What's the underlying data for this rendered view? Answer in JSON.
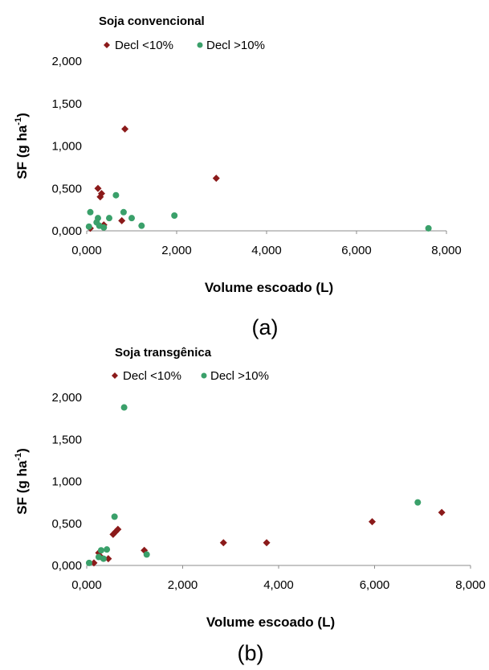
{
  "chart_data": [
    {
      "type": "scatter",
      "title": "Soja convencional",
      "xlabel": "Volume escoado (L)",
      "ylabel": "SF (g ha",
      "ylabel_superscript": "-1",
      "ylabel_suffix": ")",
      "panel_label": "(a)",
      "x_ticks": [
        "0,000",
        "2,000",
        "4,000",
        "6,000",
        "8,000"
      ],
      "y_ticks": [
        "0,000",
        "0,500",
        "1,000",
        "1,500",
        "2,000"
      ],
      "xlim": [
        0,
        8
      ],
      "ylim": [
        0,
        2
      ],
      "legend_position": "top",
      "series": [
        {
          "name": "Decl <10%",
          "color": "#8b1a1a",
          "marker": "diamond",
          "points": [
            [
              0.08,
              0.03
            ],
            [
              0.25,
              0.5
            ],
            [
              0.3,
              0.4
            ],
            [
              0.33,
              0.44
            ],
            [
              0.38,
              0.07
            ],
            [
              0.78,
              0.12
            ],
            [
              0.85,
              1.2
            ],
            [
              2.88,
              0.62
            ]
          ]
        },
        {
          "name": "Decl >10%",
          "color": "#3aa06a",
          "marker": "circle",
          "points": [
            [
              0.05,
              0.05
            ],
            [
              0.08,
              0.22
            ],
            [
              0.22,
              0.1
            ],
            [
              0.25,
              0.15
            ],
            [
              0.28,
              0.06
            ],
            [
              0.38,
              0.04
            ],
            [
              0.5,
              0.15
            ],
            [
              0.65,
              0.42
            ],
            [
              0.82,
              0.22
            ],
            [
              1.0,
              0.15
            ],
            [
              1.22,
              0.06
            ],
            [
              1.95,
              0.18
            ],
            [
              7.6,
              0.03
            ]
          ]
        }
      ]
    },
    {
      "type": "scatter",
      "title": "Soja transgênica",
      "xlabel": "Volume escoado (L)",
      "ylabel": "SF (g ha",
      "ylabel_superscript": "-1",
      "ylabel_suffix": ")",
      "panel_label": "(b)",
      "x_ticks": [
        "0,000",
        "2,000",
        "4,000",
        "6,000",
        "8,000"
      ],
      "y_ticks": [
        "0,000",
        "0,500",
        "1,000",
        "1,500",
        "2,000"
      ],
      "xlim": [
        0,
        8
      ],
      "ylim": [
        0,
        2
      ],
      "legend_position": "top",
      "series": [
        {
          "name": "Decl <10%",
          "color": "#8b1a1a",
          "marker": "diamond",
          "points": [
            [
              0.15,
              0.03
            ],
            [
              0.25,
              0.15
            ],
            [
              0.3,
              0.1
            ],
            [
              0.45,
              0.08
            ],
            [
              0.55,
              0.37
            ],
            [
              0.6,
              0.4
            ],
            [
              0.65,
              0.43
            ],
            [
              1.2,
              0.18
            ],
            [
              2.85,
              0.27
            ],
            [
              3.75,
              0.27
            ],
            [
              5.95,
              0.52
            ],
            [
              7.4,
              0.63
            ]
          ]
        },
        {
          "name": "Decl >10%",
          "color": "#3aa06a",
          "marker": "circle",
          "points": [
            [
              0.05,
              0.03
            ],
            [
              0.25,
              0.1
            ],
            [
              0.3,
              0.18
            ],
            [
              0.35,
              0.08
            ],
            [
              0.42,
              0.19
            ],
            [
              0.58,
              0.58
            ],
            [
              0.78,
              1.88
            ],
            [
              1.25,
              0.13
            ],
            [
              6.9,
              0.75
            ]
          ]
        }
      ]
    }
  ]
}
